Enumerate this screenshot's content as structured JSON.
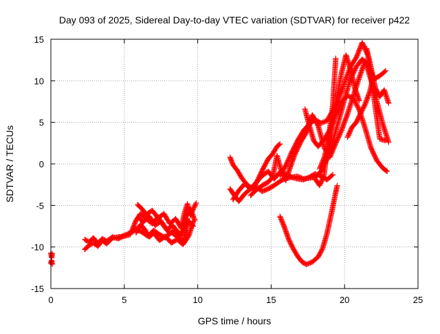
{
  "chart_data": {
    "type": "scatter",
    "title": "Day 093 of 2025, Sidereal Day-to-day VTEC variation (SDTVAR) for receiver p422",
    "xlabel": "GPS time / hours",
    "ylabel": "SDTVAR / TECUs",
    "xlim": [
      0,
      25
    ],
    "ylim": [
      -15,
      15
    ],
    "x_ticks": [
      0,
      5,
      10,
      15,
      20,
      25
    ],
    "y_ticks": [
      -15,
      -10,
      -5,
      0,
      5,
      10,
      15
    ],
    "grid": true,
    "marker": "plus",
    "color": "#ff0000",
    "traces": [
      {
        "x": [
          0.0,
          0.05,
          0.1
        ],
        "y": [
          -10.7,
          -11.3,
          -10.8
        ]
      },
      {
        "x": [
          0.0,
          0.05,
          0.1
        ],
        "y": [
          -12.0,
          -11.6,
          -12.1
        ]
      },
      {
        "x": [
          2.3,
          2.6,
          2.9,
          3.2,
          3.5,
          3.8,
          4.2,
          4.6,
          5.0,
          5.4,
          5.8,
          6.2,
          6.6,
          7.0,
          7.4,
          7.8,
          8.2,
          8.6,
          9.0,
          9.3
        ],
        "y": [
          -9.1,
          -9.4,
          -8.9,
          -9.6,
          -9.0,
          -9.3,
          -8.8,
          -9.0,
          -8.6,
          -8.3,
          -7.8,
          -8.2,
          -8.7,
          -8.0,
          -8.5,
          -8.9,
          -8.2,
          -8.8,
          -9.3,
          -8.0
        ]
      },
      {
        "x": [
          2.3,
          2.6,
          2.9,
          3.2,
          3.5,
          3.8,
          4.2,
          4.6,
          5.0,
          5.4,
          5.8,
          6.1,
          6.5,
          6.9,
          7.3,
          7.7,
          8.1,
          8.5,
          8.9,
          9.3
        ],
        "y": [
          -10.3,
          -9.8,
          -9.5,
          -9.9,
          -9.2,
          -9.6,
          -8.9,
          -8.8,
          -8.7,
          -8.5,
          -6.8,
          -6.0,
          -6.6,
          -7.2,
          -6.4,
          -7.5,
          -8.4,
          -7.9,
          -8.6,
          -6.6
        ]
      },
      {
        "x": [
          5.9,
          6.2,
          6.5,
          6.9,
          7.3,
          7.7,
          8.1,
          8.5,
          8.9,
          9.2,
          9.5,
          9.8
        ],
        "y": [
          -4.9,
          -5.4,
          -6.1,
          -5.6,
          -6.5,
          -6.0,
          -7.2,
          -6.6,
          -7.8,
          -6.4,
          -5.4,
          -6.8
        ]
      },
      {
        "x": [
          5.8,
          6.1,
          6.4,
          6.7,
          7.0,
          7.4,
          7.8,
          8.2,
          8.6,
          9.0,
          9.4,
          9.7
        ],
        "y": [
          -8.3,
          -7.3,
          -7.9,
          -8.8,
          -8.3,
          -9.2,
          -8.7,
          -9.5,
          -9.1,
          -9.7,
          -8.6,
          -6.9
        ]
      },
      {
        "x": [
          6.0,
          6.3,
          6.7,
          7.1,
          7.5,
          7.9,
          8.3,
          8.7,
          9.1,
          9.4,
          9.7
        ],
        "y": [
          -6.5,
          -7.0,
          -6.3,
          -7.4,
          -6.9,
          -7.9,
          -7.4,
          -8.5,
          -8.0,
          -6.9,
          -7.5
        ]
      },
      {
        "x": [
          8.9,
          9.1,
          9.3,
          9.5,
          9.7,
          9.9
        ],
        "y": [
          -7.6,
          -5.9,
          -4.8,
          -6.2,
          -5.4,
          -4.7
        ]
      },
      {
        "x": [
          12.2,
          12.5,
          12.8,
          13.2,
          13.6,
          14.0,
          14.4,
          14.8,
          15.2,
          15.6,
          16.0,
          16.4,
          16.8,
          17.2,
          17.6,
          18.0,
          18.4,
          18.8,
          19.2
        ],
        "y": [
          -3.0,
          -3.8,
          -4.5,
          -3.6,
          -3.0,
          -2.8,
          -3.3,
          -3.0,
          -2.6,
          -2.1,
          -1.7,
          -1.6,
          -1.8,
          -1.9,
          -1.6,
          -1.2,
          -1.5,
          -1.9,
          -1.3
        ]
      },
      {
        "x": [
          12.2,
          12.4,
          12.7,
          13.0,
          13.4,
          13.8,
          14.2,
          14.5,
          14.8,
          15.1,
          15.4,
          15.6
        ],
        "y": [
          0.8,
          -0.1,
          -0.8,
          -1.7,
          -2.6,
          -3.0,
          -1.5,
          -0.4,
          0.6,
          1.2,
          2.1,
          2.4
        ]
      },
      {
        "x": [
          12.4,
          12.8,
          13.2,
          13.6,
          14.0,
          14.4,
          14.8,
          15.2,
          15.6,
          16.0,
          16.4,
          16.8,
          17.2,
          17.6,
          18.0,
          18.4,
          18.8,
          19.2,
          19.6,
          20.0,
          20.4,
          20.8,
          21.2,
          21.6,
          22.0,
          22.4,
          22.8
        ],
        "y": [
          -4.3,
          -3.2,
          -2.4,
          -3.0,
          -2.2,
          -1.4,
          -0.9,
          -1.8,
          -1.0,
          -1.2,
          -1.6,
          -1.5,
          -1.8,
          -1.7,
          -1.6,
          -0.9,
          0.6,
          2.8,
          5.2,
          7.8,
          10.2,
          11.7,
          12.6,
          11.9,
          10.2,
          10.6,
          11.2
        ]
      },
      {
        "x": [
          13.6,
          14.0,
          14.4,
          14.8,
          15.1,
          15.4,
          15.7,
          16.0,
          16.3,
          16.6,
          17.0,
          17.4,
          17.8,
          18.2,
          18.6,
          19.0,
          19.4,
          19.8,
          20.2,
          20.6,
          21.0,
          21.4,
          21.8,
          22.2,
          22.6,
          23.0
        ],
        "y": [
          -3.8,
          -3.1,
          -2.6,
          -2.2,
          -1.6,
          1.0,
          -0.9,
          -2.0,
          -0.4,
          1.1,
          2.6,
          3.8,
          5.9,
          4.6,
          2.0,
          0.8,
          2.5,
          4.1,
          6.0,
          8.2,
          10.4,
          12.4,
          10.1,
          7.5,
          4.8,
          2.6
        ]
      },
      {
        "x": [
          15.6,
          16.0,
          16.4,
          16.8,
          17.2,
          17.6,
          18.0,
          18.4,
          18.8,
          19.2,
          19.6,
          20.0,
          20.4,
          20.8,
          21.2,
          21.6,
          22.0,
          22.4,
          22.8
        ],
        "y": [
          -1.4,
          -0.2,
          1.4,
          2.8,
          4.0,
          4.8,
          5.3,
          4.9,
          5.2,
          6.4,
          7.8,
          9.8,
          11.7,
          12.8,
          14.6,
          13.0,
          8.0,
          3.0,
          2.8
        ]
      },
      {
        "x": [
          15.6,
          15.9,
          16.2,
          16.5,
          16.8,
          17.1,
          17.4,
          17.8,
          18.2,
          18.5,
          18.8,
          19.1,
          19.4,
          19.5
        ],
        "y": [
          -6.3,
          -7.6,
          -9.1,
          -10.2,
          -11.1,
          -11.8,
          -12.1,
          -11.8,
          -11.2,
          -10.2,
          -8.4,
          -6.0,
          -3.4,
          -2.6
        ]
      },
      {
        "x": [
          17.3,
          17.6,
          17.9,
          18.2,
          18.6,
          19.0,
          19.4,
          19.8,
          20.2,
          20.6,
          21.0,
          21.4,
          21.8,
          22.2,
          22.6,
          22.9
        ],
        "y": [
          6.6,
          4.6,
          2.8,
          2.1,
          2.9,
          4.1,
          5.9,
          7.5,
          8.2,
          7.9,
          6.5,
          4.3,
          1.9,
          0.4,
          -0.5,
          -0.9
        ]
      },
      {
        "x": [
          18.3,
          18.6,
          18.9,
          19.2,
          19.5,
          19.8,
          20.1,
          20.4,
          20.7,
          21.0
        ],
        "y": [
          -0.6,
          0.7,
          2.6,
          5.4,
          8.2,
          11.0,
          13.1,
          11.4,
          9.1,
          7.6
        ]
      },
      {
        "x": [
          18.0,
          18.3,
          18.6,
          18.9,
          19.2,
          19.4
        ],
        "y": [
          -1.8,
          -2.6,
          -1.4,
          2.9,
          7.2,
          12.7
        ]
      },
      {
        "x": [
          21.5,
          21.8,
          22.1,
          22.4,
          22.7,
          23.0
        ],
        "y": [
          13.9,
          11.6,
          9.1,
          8.1,
          8.9,
          7.3
        ]
      },
      {
        "x": [
          20.2,
          20.5,
          20.8,
          21.1,
          21.4,
          21.7,
          22.0
        ],
        "y": [
          3.2,
          4.4,
          5.0,
          6.1,
          7.2,
          8.6,
          10.6
        ]
      }
    ]
  }
}
